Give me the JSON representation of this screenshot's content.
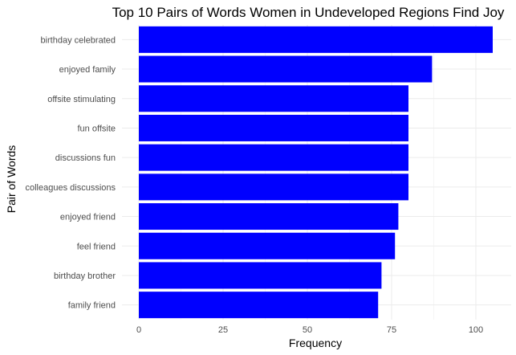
{
  "chart_data": {
    "type": "bar",
    "orientation": "horizontal",
    "title": "Top 10 Pairs of Words Women in Undeveloped Regions Find Joy",
    "xlabel": "Frequency",
    "ylabel": "Pair of Words",
    "categories": [
      "birthday celebrated",
      "enjoyed family",
      "offsite stimulating",
      "fun offsite",
      "discussions fun",
      "colleagues discussions",
      "enjoyed friend",
      "feel friend",
      "birthday brother",
      "family friend"
    ],
    "values": [
      105,
      87,
      80,
      80,
      80,
      80,
      77,
      76,
      72,
      71
    ],
    "xlim": [
      0,
      110
    ],
    "xticks": [
      0,
      25,
      50,
      75,
      100
    ],
    "bar_color": "#0000ff",
    "grid": true
  }
}
